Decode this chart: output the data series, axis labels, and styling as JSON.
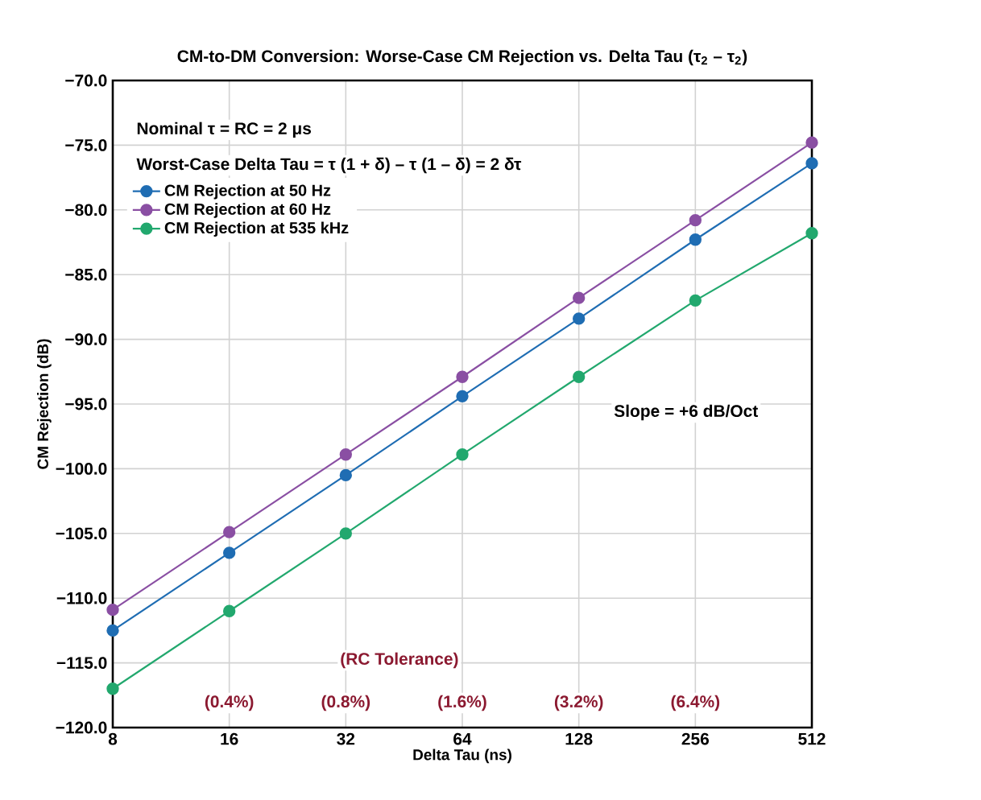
{
  "chart_data": {
    "type": "line",
    "title": "CM-to-DM Conversion: Worse-Case CM Rejection vs. Delta Tau (τ$_{2}$ – τ$_{2}$)",
    "xlabel": "Delta Tau (ns)",
    "ylabel": "CM Rejection (dB)",
    "x": [
      8,
      16,
      32,
      64,
      128,
      256,
      512
    ],
    "series": [
      {
        "name": "CM Rejection at 50 Hz",
        "color": "#1f6db3",
        "values": [
          -112.5,
          -106.5,
          -100.5,
          -94.4,
          -88.4,
          -82.3,
          -76.4
        ]
      },
      {
        "name": "CM Rejection at 60 Hz",
        "color": "#8a4fa3",
        "values": [
          -110.9,
          -104.9,
          -98.9,
          -92.9,
          -86.8,
          -80.8,
          -74.8
        ]
      },
      {
        "name": "CM Rejection at 535 kHz",
        "color": "#22a86e",
        "values": [
          -117.0,
          -111.0,
          -105.0,
          -98.9,
          -92.9,
          -87.0,
          -81.8
        ]
      }
    ],
    "log": "x",
    "xlim": [
      8,
      512
    ],
    "xticks": [
      8,
      16,
      32,
      64,
      128,
      256,
      512
    ],
    "ylim": [
      -120,
      -70
    ],
    "yticks": [
      {
        "value": -120,
        "label": "−120.0"
      },
      {
        "value": -115,
        "label": "−115.0"
      },
      {
        "value": -110,
        "label": "−110.0"
      },
      {
        "value": -105,
        "label": "−105.0"
      },
      {
        "value": -100,
        "label": "−100.0"
      },
      {
        "value": -95,
        "label": "−95.0"
      },
      {
        "value": -90,
        "label": "−90.0"
      },
      {
        "value": -85,
        "label": "−85.0"
      },
      {
        "value": -80,
        "label": "−80.0"
      },
      {
        "value": -75,
        "label": "−75.0"
      },
      {
        "value": -70,
        "label": "−70.0"
      }
    ],
    "grid": true,
    "legend": "top left",
    "marker": "circle",
    "line_style": "solid",
    "annotations": [
      "Nominal τ = RC = 2 μs",
      "Worst-Case Delta Tau = τ (1 + δ) – τ (1 – δ) = 2 δτ",
      "Slope = +6 dB/Oct",
      "(RC Tolerance)",
      {
        "text": "(0.4%)",
        "x": 16,
        "y": -118.1
      },
      {
        "text": "(0.8%)",
        "x": 32,
        "y": -118.1
      },
      {
        "text": "(1.6%)",
        "x": 64,
        "y": -118.1
      },
      {
        "text": "(3.2%)",
        "x": 128,
        "y": -118.1
      },
      {
        "text": "(6.4%)",
        "x": 256,
        "y": -118.1
      }
    ]
  }
}
